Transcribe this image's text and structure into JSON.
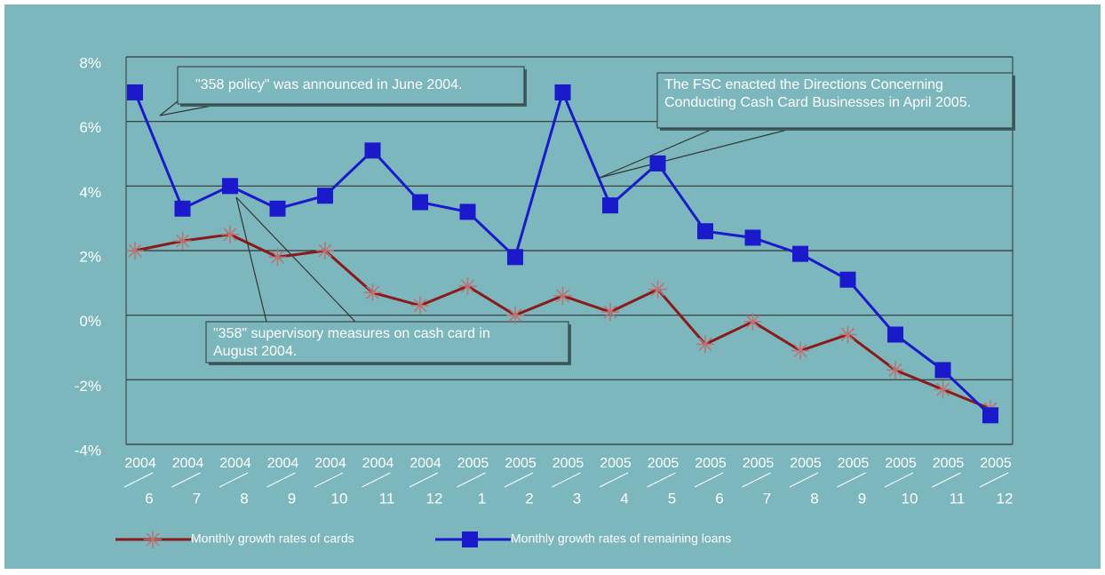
{
  "chart_data": {
    "type": "line",
    "categories": [
      [
        "2004",
        "6"
      ],
      [
        "2004",
        "7"
      ],
      [
        "2004",
        "8"
      ],
      [
        "2004",
        "9"
      ],
      [
        "2004",
        "10"
      ],
      [
        "2004",
        "11"
      ],
      [
        "2004",
        "12"
      ],
      [
        "2005",
        "1"
      ],
      [
        "2005",
        "2"
      ],
      [
        "2005",
        "3"
      ],
      [
        "2005",
        "4"
      ],
      [
        "2005",
        "5"
      ],
      [
        "2005",
        "6"
      ],
      [
        "2005",
        "7"
      ],
      [
        "2005",
        "8"
      ],
      [
        "2005",
        "9"
      ],
      [
        "2005",
        "10"
      ],
      [
        "2005",
        "11"
      ],
      [
        "2005",
        "12"
      ]
    ],
    "series": [
      {
        "name": "Monthly growth rates of cards",
        "color": "#8b1a1a",
        "marker": "star",
        "values": [
          2.0,
          2.3,
          2.5,
          1.8,
          2.0,
          0.7,
          0.3,
          0.9,
          0.0,
          0.6,
          0.1,
          0.8,
          -0.9,
          -0.2,
          -1.1,
          -0.6,
          -1.7,
          -2.3,
          -2.9
        ]
      },
      {
        "name": "Monthly growth rates of remaining loans",
        "color": "#1a1acc",
        "marker": "square",
        "values": [
          6.9,
          3.3,
          4.0,
          3.3,
          3.7,
          5.1,
          3.5,
          3.2,
          1.8,
          6.9,
          3.4,
          4.7,
          2.6,
          2.4,
          1.9,
          1.1,
          -0.6,
          -1.7,
          -3.1
        ]
      }
    ],
    "ylim": [
      -4,
      8
    ],
    "yticks": [
      {
        "value": -4,
        "label": "-4%"
      },
      {
        "value": -2,
        "label": "-2%"
      },
      {
        "value": 0,
        "label": "0%"
      },
      {
        "value": 2,
        "label": "2%"
      },
      {
        "value": 4,
        "label": "4%"
      },
      {
        "value": 6,
        "label": "6%"
      },
      {
        "value": 8,
        "label": "8%"
      }
    ],
    "grid": true,
    "legend": "bottom",
    "annotations": [
      [
        "\"358 policy\" was announced in June 2004."
      ],
      [
        "The FSC enacted the Directions Concerning",
        "Conducting Cash Card Businesses in April 2005."
      ],
      [
        "\"358\" supervisory measures on cash card in",
        "August 2004."
      ]
    ]
  }
}
